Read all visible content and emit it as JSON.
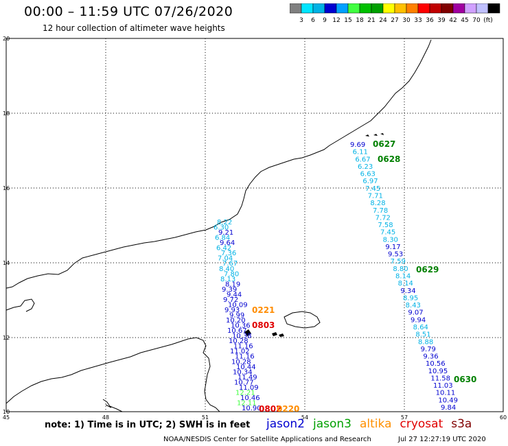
{
  "header": {
    "title": "00:00 – 11:59 UTC 07/26/2020",
    "subtitle": "12 hour collection of altimeter wave heights"
  },
  "colorbar": {
    "colors": [
      "#808080",
      "#00e5ff",
      "#00b2e5",
      "#0000d0",
      "#00a0ff",
      "#40ff40",
      "#00c000",
      "#00a000",
      "#ffff00",
      "#ffc000",
      "#ff8000",
      "#ff0000",
      "#c00000",
      "#800000",
      "#a000a0",
      "#d0a0ff",
      "#c0c0ff",
      "#000000"
    ],
    "labels": [
      "3",
      "6",
      "9",
      "12",
      "15",
      "18",
      "21",
      "24",
      "27",
      "30",
      "33",
      "36",
      "39",
      "42",
      "45",
      "70",
      "(ft)"
    ]
  },
  "axes": {
    "x_ticks": [
      "45",
      "48",
      "51",
      "54",
      "57",
      "60"
    ],
    "y_ticks": [
      "20",
      "18",
      "16",
      "14",
      "12",
      "10"
    ]
  },
  "tracks": [
    {
      "color_names": "mixed",
      "points": [
        {
          "v": "8.22",
          "c": "#00b2e5"
        },
        {
          "v": "6.30",
          "c": "#00b2e5"
        },
        {
          "v": "9.21",
          "c": "#0000d0"
        },
        {
          "v": "6.84",
          "c": "#00b2e5"
        },
        {
          "v": "9.64",
          "c": "#0000d0"
        },
        {
          "v": "6.42",
          "c": "#00b2e5"
        },
        {
          "v": "7.36",
          "c": "#00b2e5"
        },
        {
          "v": "7.04",
          "c": "#00b2e5"
        },
        {
          "v": "7.67",
          "c": "#00b2e5"
        },
        {
          "v": "8.40",
          "c": "#00b2e5"
        },
        {
          "v": "7.80",
          "c": "#00b2e5"
        },
        {
          "v": "8.13",
          "c": "#00b2e5"
        },
        {
          "v": "8.19",
          "c": "#0000d0"
        },
        {
          "v": "9.39",
          "c": "#0000d0"
        },
        {
          "v": "9.44",
          "c": "#0000d0"
        },
        {
          "v": "9.72",
          "c": "#0000d0"
        },
        {
          "v": "10.09",
          "c": "#0000d0"
        },
        {
          "v": "9.93",
          "c": "#0000d0"
        },
        {
          "v": "9.99",
          "c": "#0000d0"
        },
        {
          "v": "10.20",
          "c": "#0000d0"
        },
        {
          "v": "10.36",
          "c": "#0000d0"
        },
        {
          "v": "10.67",
          "c": "#0000d0"
        },
        {
          "v": "10.38",
          "c": "#0000d0"
        },
        {
          "v": "10.28",
          "c": "#0000d0"
        },
        {
          "v": "11.16",
          "c": "#0000d0"
        },
        {
          "v": "11.02",
          "c": "#0000d0"
        },
        {
          "v": "11.16",
          "c": "#0000d0"
        },
        {
          "v": "10.28",
          "c": "#0000d0"
        },
        {
          "v": "10.44",
          "c": "#0000d0"
        },
        {
          "v": "10.34",
          "c": "#0000d0"
        },
        {
          "v": "11.49",
          "c": "#0000d0"
        },
        {
          "v": "10.77",
          "c": "#0000d0"
        },
        {
          "v": "11.09",
          "c": "#0000d0"
        },
        {
          "v": "12.21",
          "c": "#40ff40"
        },
        {
          "v": "10.46",
          "c": "#0000d0"
        },
        {
          "v": "12.11",
          "c": "#40ff40"
        },
        {
          "v": "10.90",
          "c": "#0000d0"
        }
      ]
    },
    {
      "color_names": "mixed",
      "points": [
        {
          "v": "9.69",
          "c": "#0000d0"
        },
        {
          "v": "6.11",
          "c": "#00b2e5"
        },
        {
          "v": "6.67",
          "c": "#00b2e5"
        },
        {
          "v": "6.23",
          "c": "#00b2e5"
        },
        {
          "v": "6.63",
          "c": "#00b2e5"
        },
        {
          "v": "6.97",
          "c": "#00b2e5"
        },
        {
          "v": "7.45",
          "c": "#00b2e5"
        },
        {
          "v": "7.71",
          "c": "#00b2e5"
        },
        {
          "v": "8.28",
          "c": "#00b2e5"
        },
        {
          "v": "7.78",
          "c": "#00b2e5"
        },
        {
          "v": "7.72",
          "c": "#00b2e5"
        },
        {
          "v": "7.58",
          "c": "#00b2e5"
        },
        {
          "v": "7.45",
          "c": "#00b2e5"
        },
        {
          "v": "8.30",
          "c": "#00b2e5"
        },
        {
          "v": "9.17",
          "c": "#0000d0"
        },
        {
          "v": "9.53",
          "c": "#0000d0"
        },
        {
          "v": "7.59",
          "c": "#00b2e5"
        },
        {
          "v": "8.80",
          "c": "#00b2e5"
        },
        {
          "v": "8.14",
          "c": "#00b2e5"
        },
        {
          "v": "8.14",
          "c": "#00b2e5"
        },
        {
          "v": "9.34",
          "c": "#0000d0"
        },
        {
          "v": "8.95",
          "c": "#00b2e5"
        },
        {
          "v": "8.43",
          "c": "#00b2e5"
        },
        {
          "v": "9.07",
          "c": "#0000d0"
        },
        {
          "v": "9.94",
          "c": "#0000d0"
        },
        {
          "v": "8.64",
          "c": "#00b2e5"
        },
        {
          "v": "8.51",
          "c": "#00b2e5"
        },
        {
          "v": "8.88",
          "c": "#00b2e5"
        },
        {
          "v": "9.79",
          "c": "#0000d0"
        },
        {
          "v": "9.36",
          "c": "#0000d0"
        },
        {
          "v": "10.56",
          "c": "#0000d0"
        },
        {
          "v": "10.95",
          "c": "#0000d0"
        },
        {
          "v": "11.58",
          "c": "#0000d0"
        },
        {
          "v": "11.03",
          "c": "#0000d0"
        },
        {
          "v": "10.11",
          "c": "#0000d0"
        },
        {
          "v": "10.49",
          "c": "#0000d0"
        },
        {
          "v": "9.84",
          "c": "#0000d0"
        }
      ]
    }
  ],
  "time_labels": [
    {
      "text": "0627",
      "color": "#008000"
    },
    {
      "text": "0628",
      "color": "#008000"
    },
    {
      "text": "0629",
      "color": "#008000"
    },
    {
      "text": "0630",
      "color": "#008000"
    },
    {
      "text": "0221",
      "color": "#ff8c00"
    },
    {
      "text": "0803",
      "color": "#e00000"
    },
    {
      "text": "0802",
      "color": "#e00000"
    },
    {
      "text": "0220",
      "color": "#ff8c00"
    }
  ],
  "footer": {
    "note": "note: 1) Time is in UTC; 2) SWH is in feet",
    "satellites": [
      {
        "name": "jason2",
        "color": "#0000d0"
      },
      {
        "name": "jason3",
        "color": "#00a000"
      },
      {
        "name": "altika",
        "color": "#ff9000"
      },
      {
        "name": "cryosat",
        "color": "#e00000"
      },
      {
        "name": "s3a",
        "color": "#800000"
      }
    ],
    "credit": "NOAA/NESDIS Center for Satellite Applications and Research",
    "timestamp": "Jul 27 12:27:19 UTC 2020"
  }
}
